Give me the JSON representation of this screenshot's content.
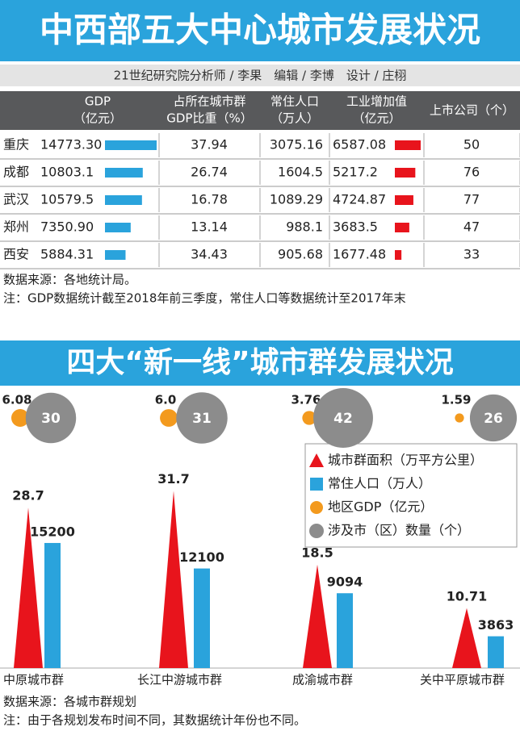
{
  "header": {
    "title": "中西部五大中心城市发展状况",
    "credits": "21世纪研究院分析师 / 李果　编辑 / 李博　设计 / 庄栩"
  },
  "table": {
    "columns": [
      [
        "GDP",
        "（亿元）"
      ],
      [
        "占所在城市群",
        "GDP比重（%）"
      ],
      [
        "常住人口",
        "（万人）"
      ],
      [
        "工业增加值",
        "（亿元）"
      ],
      [
        "上市公司（个）"
      ]
    ],
    "rows": [
      [
        "重庆",
        "14773.30",
        "37.94",
        "3075.16",
        "6587.08",
        "50"
      ],
      [
        "成都",
        "10803.1",
        "26.74",
        "1604.5",
        "5217.2",
        "76"
      ],
      [
        "武汉",
        "10579.5",
        "16.78",
        "1089.29",
        "4724.87",
        "77"
      ],
      [
        "郑州",
        "7350.90",
        "13.14",
        "988.1",
        "3683.5",
        "47"
      ],
      [
        "西安",
        "5884.31",
        "34.43",
        "905.68",
        "1677.48",
        "33"
      ]
    ]
  },
  "notes": [
    "数据来源：各地统计局。",
    "注：GDP数据统计截至2018年前三季度，常住人口等数据统计至2017年末"
  ],
  "section2": {
    "title": "四大“新一线”城市群发展状况",
    "legend": [
      "城市群面积（万平方公里）",
      "常住人口（万人）",
      "地区GDP（亿元）",
      "涉及市（区）数量（个）"
    ],
    "groups": [
      "中原城市群",
      "长江中游城市群",
      "成渝城市群",
      "关中平原城市群"
    ],
    "area": [
      28.7,
      31.7,
      18.5,
      10.71
    ],
    "population": [
      15200,
      12100,
      9094,
      3863
    ],
    "gdp": [
      6.08,
      6.0,
      3.76,
      1.59
    ],
    "gdp_labels": [
      "6.08",
      "6.0",
      "3.76",
      "1.59"
    ],
    "counts": [
      30,
      31,
      42,
      26
    ],
    "notes": [
      "数据来源：各城市群规划",
      "注：由于各规划发布时间不同，其数据统计年份也不同。"
    ]
  }
}
